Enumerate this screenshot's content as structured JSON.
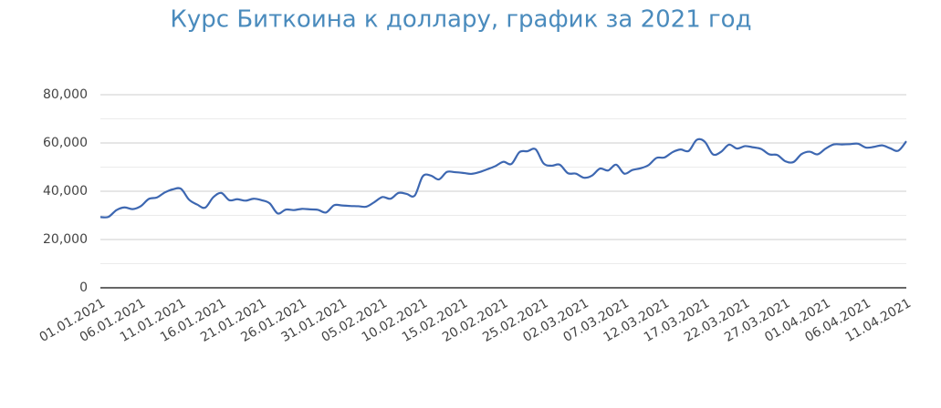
{
  "chart_data": {
    "type": "line",
    "title": "Курс Биткоина к доллару, график за 2021 год",
    "categories": [
      "01.01.2021",
      null,
      null,
      null,
      null,
      "06.01.2021",
      null,
      null,
      null,
      null,
      "11.01.2021",
      null,
      null,
      null,
      null,
      "16.01.2021",
      null,
      null,
      null,
      null,
      "21.01.2021",
      null,
      null,
      null,
      null,
      "26.01.2021",
      null,
      null,
      null,
      null,
      "31.01.2021",
      null,
      null,
      null,
      null,
      "05.02.2021",
      null,
      null,
      null,
      null,
      "10.02.2021",
      null,
      null,
      null,
      null,
      "15.02.2021",
      null,
      null,
      null,
      null,
      "20.02.2021",
      null,
      null,
      null,
      null,
      "25.02.2021",
      null,
      null,
      null,
      null,
      "02.03.2021",
      null,
      null,
      null,
      null,
      "07.03.2021",
      null,
      null,
      null,
      null,
      "12.03.2021",
      null,
      null,
      null,
      null,
      "17.03.2021",
      null,
      null,
      null,
      null,
      "22.03.2021",
      null,
      null,
      null,
      null,
      "27.03.2021",
      null,
      null,
      null,
      null,
      "01.04.2021",
      null,
      null,
      null,
      null,
      "06.04.2021",
      null,
      null,
      null,
      null,
      "11.04.2021"
    ],
    "series": [
      {
        "color": "#3d67b1",
        "values": [
          29300,
          29400,
          32200,
          33300,
          32600,
          33800,
          36800,
          37400,
          39500,
          40800,
          41000,
          36500,
          34500,
          33200,
          37500,
          39300,
          36300,
          36700,
          36100,
          36900,
          36300,
          35000,
          30800,
          32400,
          32200,
          32700,
          32500,
          32300,
          31200,
          34200,
          34100,
          33900,
          33800,
          33600,
          35500,
          37600,
          36900,
          39300,
          38900,
          38200,
          46200,
          46500,
          44900,
          48000,
          47900,
          47600,
          47200,
          47900,
          49100,
          50400,
          52200,
          51300,
          56200,
          56600,
          57400,
          51500,
          50600,
          51000,
          47500,
          47300,
          45600,
          46500,
          49400,
          48600,
          51000,
          47300,
          48800,
          49500,
          50800,
          53800,
          54000,
          56200,
          57300,
          56700,
          61300,
          60500,
          55300,
          56300,
          59300,
          57700,
          58700,
          58200,
          57500,
          55300,
          55000,
          52400,
          52100,
          55400,
          56400,
          55300,
          57700,
          59400,
          59400,
          59500,
          59700,
          58100,
          58400,
          59000,
          57800,
          56800,
          60700
        ]
      }
    ],
    "ylim": [
      0,
      80000
    ],
    "yticks": [
      0,
      {
        "value": 20000,
        "label": "20,000"
      },
      {
        "value": 40000,
        "label": "40,000"
      },
      {
        "value": 60000,
        "label": "60,000"
      },
      {
        "value": 80000,
        "label": "80,000"
      }
    ],
    "minor_yticks": [
      10000,
      30000,
      50000,
      70000
    ],
    "grid": true
  }
}
